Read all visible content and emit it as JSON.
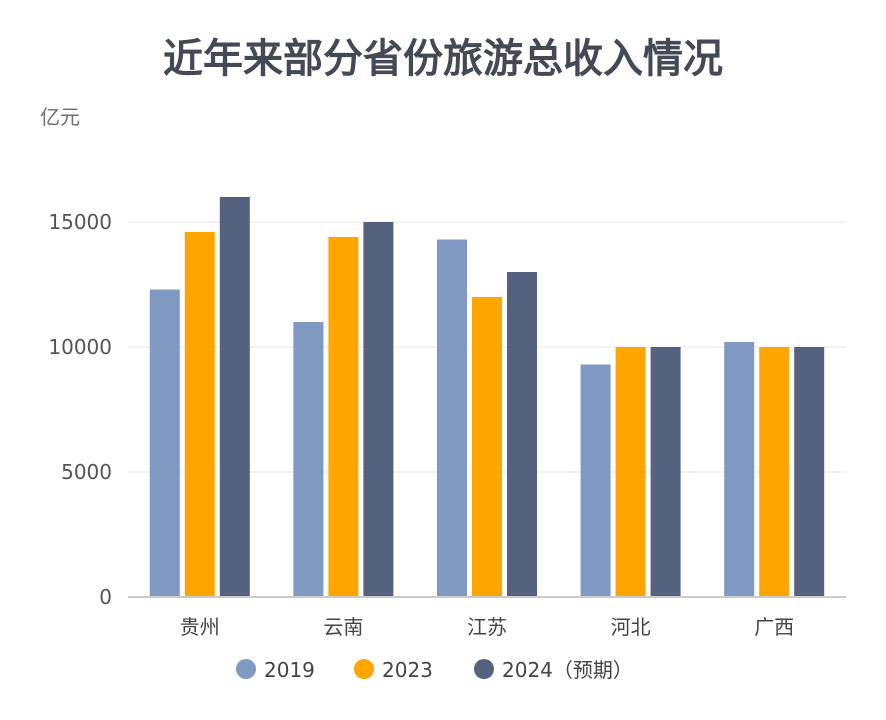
{
  "chart_data": {
    "type": "bar",
    "title": "近年来部分省份旅游总收入情况",
    "ylabel": "亿元",
    "xlabel": "",
    "categories": [
      "贵州",
      "云南",
      "江苏",
      "河北",
      "广西"
    ],
    "series": [
      {
        "name": "2019",
        "color": "#7f99c2",
        "values": [
          12300,
          11000,
          14300,
          9300,
          10200
        ]
      },
      {
        "name": "2023",
        "color": "#ffa500",
        "values": [
          14600,
          14400,
          12000,
          10000,
          10000
        ]
      },
      {
        "name": "2024（预期）",
        "color": "#54617f",
        "values": [
          16000,
          15000,
          13000,
          10000,
          10000
        ]
      }
    ],
    "ylim": [
      0,
      16500
    ],
    "yticks": [
      "0",
      "5000",
      "10000",
      "15000"
    ],
    "ytick_values": [
      0,
      5000,
      10000,
      15000
    ],
    "grid": true,
    "legend": "bottom-center"
  }
}
